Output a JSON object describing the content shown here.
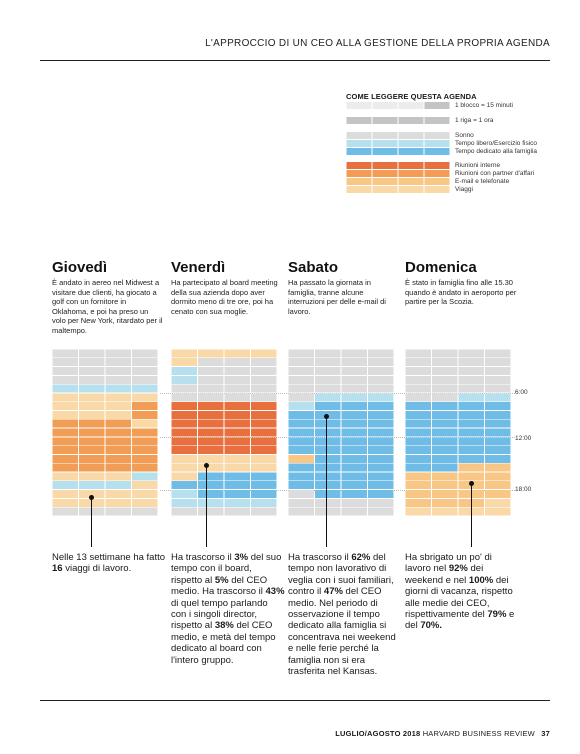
{
  "header": {
    "title": "L'APPROCCIO DI UN CEO ALLA GESTIONE DELLA PROPRIA AGENDA"
  },
  "legend": {
    "title": "COME LEGGERE QUESTA AGENDA",
    "scale": [
      {
        "label": "1 blocco = 15 minuti",
        "color": "#c3c4c6"
      },
      {
        "label": "1 riga = 1 ora",
        "color": "#c3c4c6"
      }
    ],
    "categories": [
      {
        "key": "sleep",
        "label": "Sonno",
        "color": "#dcdcdc"
      },
      {
        "key": "free",
        "label": "Tempo libero/Esercizio fisico",
        "color": "#b7e0ef"
      },
      {
        "key": "family",
        "label": "Tempo dedicato alla famiglia",
        "color": "#6fbde6"
      },
      {
        "key": "internal",
        "label": "Riunioni interne",
        "color": "#e7703e"
      },
      {
        "key": "partners",
        "label": "Riunioni con partner d'affari",
        "color": "#f29d56"
      },
      {
        "key": "email",
        "label": "E-mail e telefonate",
        "color": "#f8c685"
      },
      {
        "key": "travel",
        "label": "Viaggi",
        "color": "#fad9a8"
      }
    ]
  },
  "time_labels": [
    "6:00",
    "12:00",
    "18:00"
  ],
  "days": [
    {
      "name": "Giovedì",
      "desc": "È andato in aereo nel Midwest a visitare due clienti, ha giocato a golf con un fornitore in Oklahoma, e poi ha preso un volo per New York, ritardato per il maltempo.",
      "note": [
        {
          "t": "Nelle 13 settimane ha fatto "
        },
        {
          "t": "16",
          "b": true
        },
        {
          "t": " viaggi di lavoro."
        }
      ],
      "rows": [
        [
          "S",
          "S",
          "S",
          "S"
        ],
        [
          "S",
          "S",
          "S",
          "S"
        ],
        [
          "S",
          "S",
          "S",
          "S"
        ],
        [
          "S",
          "S",
          "S",
          "S"
        ],
        [
          "F",
          "F",
          "F",
          "F"
        ],
        [
          "V",
          "V",
          "V",
          "V"
        ],
        [
          "V",
          "V",
          "V",
          "P"
        ],
        [
          "V",
          "V",
          "V",
          "P"
        ],
        [
          "P",
          "P",
          "P",
          "V"
        ],
        [
          "P",
          "P",
          "P",
          "P"
        ],
        [
          "P",
          "P",
          "P",
          "P"
        ],
        [
          "P",
          "P",
          "P",
          "P"
        ],
        [
          "P",
          "P",
          "P",
          "P"
        ],
        [
          "P",
          "P",
          "P",
          "P"
        ],
        [
          "V",
          "V",
          "V",
          "F"
        ],
        [
          "F",
          "F",
          "F",
          "V"
        ],
        [
          "V",
          "V",
          "V",
          "V"
        ],
        [
          "V",
          "V",
          "V",
          "V"
        ],
        [
          "S",
          "S",
          "S",
          "S"
        ]
      ]
    },
    {
      "name": "Venerdì",
      "desc": "Ha partecipato al board meeting della sua azienda dopo aver dormito meno di tre ore, poi ha cenato con sua moglie.",
      "note": [
        {
          "t": "Ha trascorso il "
        },
        {
          "t": "3%",
          "b": true
        },
        {
          "t": " del suo tempo con il board, rispetto al "
        },
        {
          "t": "5%",
          "b": true
        },
        {
          "t": " del CEO medio. Ha trascorso il "
        },
        {
          "t": "43%",
          "b": true
        },
        {
          "t": " di quel tempo parlando con i singoli director, rispetto al "
        },
        {
          "t": "38%",
          "b": true
        },
        {
          "t": " del CEO medio, e metà del tempo dedicato al board con l'intero gruppo."
        }
      ],
      "rows": [
        [
          "V",
          "V",
          "V",
          "V"
        ],
        [
          "V",
          "S",
          "S",
          "S"
        ],
        [
          "F",
          "S",
          "S",
          "S"
        ],
        [
          "F",
          "S",
          "S",
          "S"
        ],
        [
          "S",
          "S",
          "S",
          "S"
        ],
        [
          "S",
          "S",
          "S",
          "S"
        ],
        [
          "I",
          "I",
          "I",
          "I"
        ],
        [
          "I",
          "I",
          "I",
          "I"
        ],
        [
          "I",
          "I",
          "I",
          "I"
        ],
        [
          "I",
          "I",
          "I",
          "I"
        ],
        [
          "I",
          "I",
          "I",
          "I"
        ],
        [
          "I",
          "I",
          "I",
          "I"
        ],
        [
          "V",
          "V",
          "V",
          "V"
        ],
        [
          "V",
          "V",
          "V",
          "V"
        ],
        [
          "V",
          "M",
          "M",
          "M"
        ],
        [
          "M",
          "M",
          "M",
          "M"
        ],
        [
          "F",
          "M",
          "M",
          "M"
        ],
        [
          "F",
          "F",
          "F",
          "F"
        ],
        [
          "S",
          "S",
          "S",
          "S"
        ]
      ]
    },
    {
      "name": "Sabato",
      "desc": "Ha passato la giornata in famiglia, tranne alcune interruzioni per delle e-mail di lavoro.",
      "note": [
        {
          "t": "Ha trascorso il "
        },
        {
          "t": "62%",
          "b": true
        },
        {
          "t": " del tempo non lavorativo di veglia con i suoi familiari, contro il "
        },
        {
          "t": "47%",
          "b": true
        },
        {
          "t": " del CEO medio. Nel periodo di osservazione il tempo dedicato alla famiglia si concentrava nei weekend e nelle ferie perché la famiglia non si era trasferita nel Kansas."
        }
      ],
      "rows": [
        [
          "S",
          "S",
          "S",
          "S"
        ],
        [
          "S",
          "S",
          "S",
          "S"
        ],
        [
          "S",
          "S",
          "S",
          "S"
        ],
        [
          "S",
          "S",
          "S",
          "S"
        ],
        [
          "S",
          "S",
          "S",
          "S"
        ],
        [
          "S",
          "F",
          "F",
          "F"
        ],
        [
          "F",
          "M",
          "M",
          "M"
        ],
        [
          "M",
          "M",
          "M",
          "M"
        ],
        [
          "M",
          "M",
          "M",
          "M"
        ],
        [
          "M",
          "M",
          "M",
          "M"
        ],
        [
          "M",
          "M",
          "M",
          "M"
        ],
        [
          "M",
          "M",
          "M",
          "M"
        ],
        [
          "E",
          "M",
          "M",
          "M"
        ],
        [
          "M",
          "M",
          "M",
          "M"
        ],
        [
          "M",
          "M",
          "M",
          "M"
        ],
        [
          "M",
          "M",
          "M",
          "M"
        ],
        [
          "S",
          "M",
          "M",
          "M"
        ],
        [
          "S",
          "S",
          "S",
          "S"
        ],
        [
          "S",
          "S",
          "S",
          "S"
        ]
      ]
    },
    {
      "name": "Domenica",
      "desc": "È stato in famiglia fino alle 15.30 quando è andato in aeroporto per partire per la Scozia.",
      "note": [
        {
          "t": "Ha sbrigato un po' di lavoro nel "
        },
        {
          "t": "92%",
          "b": true
        },
        {
          "t": " dei weekend e nel "
        },
        {
          "t": "100%",
          "b": true
        },
        {
          "t": " dei giorni di vacanza, rispetto alle medie dei CEO, rispettivamente del "
        },
        {
          "t": "79%",
          "b": true
        },
        {
          "t": " e del "
        },
        {
          "t": "70%.",
          "b": true
        }
      ],
      "rows": [
        [
          "S",
          "S",
          "S",
          "S"
        ],
        [
          "S",
          "S",
          "S",
          "S"
        ],
        [
          "S",
          "S",
          "S",
          "S"
        ],
        [
          "S",
          "S",
          "S",
          "S"
        ],
        [
          "S",
          "S",
          "S",
          "S"
        ],
        [
          "S",
          "S",
          "F",
          "F"
        ],
        [
          "M",
          "M",
          "M",
          "M"
        ],
        [
          "M",
          "M",
          "M",
          "M"
        ],
        [
          "M",
          "M",
          "M",
          "M"
        ],
        [
          "M",
          "M",
          "M",
          "M"
        ],
        [
          "M",
          "M",
          "M",
          "M"
        ],
        [
          "M",
          "M",
          "M",
          "M"
        ],
        [
          "M",
          "M",
          "M",
          "M"
        ],
        [
          "M",
          "M",
          "E",
          "E"
        ],
        [
          "E",
          "E",
          "E",
          "E"
        ],
        [
          "E",
          "E",
          "E",
          "E"
        ],
        [
          "E",
          "E",
          "E",
          "E"
        ],
        [
          "E",
          "E",
          "E",
          "V"
        ],
        [
          "V",
          "V",
          "V",
          "V"
        ]
      ]
    }
  ],
  "footer": {
    "issue": "LUGLIO/AGOSTO 2018",
    "magazine": "HARVARD BUSINESS REVIEW",
    "page": "37"
  }
}
